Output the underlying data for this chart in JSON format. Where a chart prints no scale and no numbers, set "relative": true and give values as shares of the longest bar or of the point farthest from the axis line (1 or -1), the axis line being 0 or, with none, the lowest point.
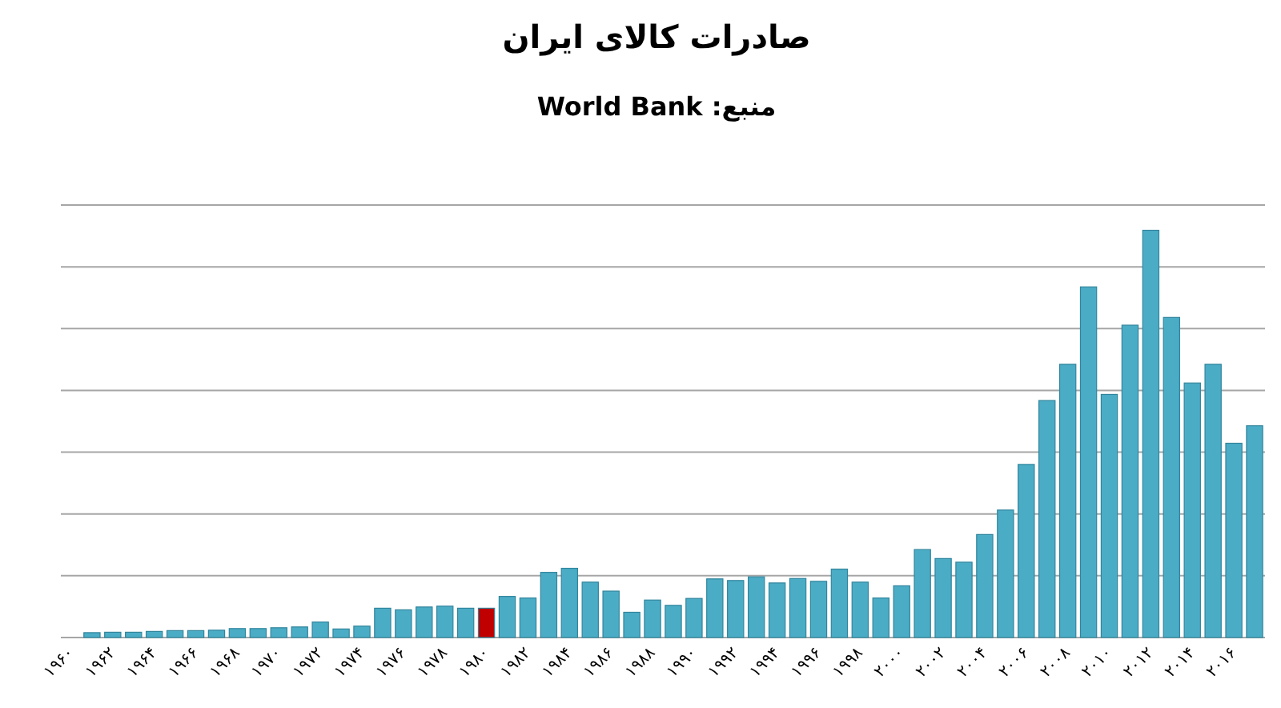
{
  "chart_data": {
    "type": "bar",
    "title": "صادرات کالای ایران",
    "subtitle": "منبع:  World Bank",
    "relative": true,
    "grid": "y",
    "categories": [
      "۱۹۶۰",
      null,
      "۱۹۶۲",
      null,
      "۱۹۶۴",
      null,
      "۱۹۶۶",
      null,
      "۱۹۶۸",
      null,
      "۱۹۷۰",
      null,
      "۱۹۷۲",
      null,
      "۱۹۷۴",
      null,
      "۱۹۷۶",
      null,
      "۱۹۷۸",
      null,
      "۱۹۸۰",
      null,
      "۱۹۸۲",
      null,
      "۱۹۸۴",
      null,
      "۱۹۸۶",
      null,
      "۱۹۸۸",
      null,
      "۱۹۹۰",
      null,
      "۱۹۹۲",
      null,
      "۱۹۹۴",
      null,
      "۱۹۹۶",
      null,
      "۱۹۹۸",
      null,
      "۲۰۰۰",
      null,
      "۲۰۰۲",
      null,
      "۲۰۰۴",
      null,
      "۲۰۰۶",
      null,
      "۲۰۰۸",
      null,
      "۲۰۱۰",
      null,
      "۲۰۱۲",
      null,
      "۲۰۱۴",
      null,
      "۲۰۱۶",
      null
    ],
    "values": [
      null,
      0.012,
      0.013,
      0.013,
      0.015,
      0.017,
      0.017,
      0.018,
      0.022,
      0.022,
      0.024,
      0.026,
      0.038,
      0.021,
      0.028,
      0.072,
      0.068,
      0.075,
      0.077,
      0.072,
      0.072,
      0.101,
      0.097,
      0.16,
      0.17,
      0.136,
      0.114,
      0.062,
      0.092,
      0.079,
      0.096,
      0.144,
      0.14,
      0.149,
      0.134,
      0.145,
      0.138,
      0.168,
      0.136,
      0.097,
      0.127,
      0.216,
      0.194,
      0.185,
      0.253,
      0.313,
      0.425,
      0.582,
      0.671,
      0.861,
      0.597,
      0.767,
      1,
      0.786,
      0.625,
      0.671,
      0.477,
      0.52
    ],
    "colors": [
      null,
      "#4bacc6",
      "#4bacc6",
      "#4bacc6",
      "#4bacc6",
      "#4bacc6",
      "#4bacc6",
      "#4bacc6",
      "#4bacc6",
      "#4bacc6",
      "#4bacc6",
      "#4bacc6",
      "#4bacc6",
      "#4bacc6",
      "#4bacc6",
      "#4bacc6",
      "#4bacc6",
      "#4bacc6",
      "#4bacc6",
      "#4bacc6",
      "#c00000",
      "#4bacc6",
      "#4bacc6",
      "#4bacc6",
      "#4bacc6",
      "#4bacc6",
      "#4bacc6",
      "#4bacc6",
      "#4bacc6",
      "#4bacc6",
      "#4bacc6",
      "#4bacc6",
      "#4bacc6",
      "#4bacc6",
      "#4bacc6",
      "#4bacc6",
      "#4bacc6",
      "#4bacc6",
      "#4bacc6",
      "#4bacc6",
      "#4bacc6",
      "#4bacc6",
      "#4bacc6",
      "#4bacc6",
      "#4bacc6",
      "#4bacc6",
      "#4bacc6",
      "#4bacc6",
      "#4bacc6",
      "#4bacc6",
      "#4bacc6",
      "#4bacc6",
      "#4bacc6",
      "#4bacc6",
      "#4bacc6",
      "#4bacc6",
      "#4bacc6",
      "#4bacc6"
    ]
  }
}
